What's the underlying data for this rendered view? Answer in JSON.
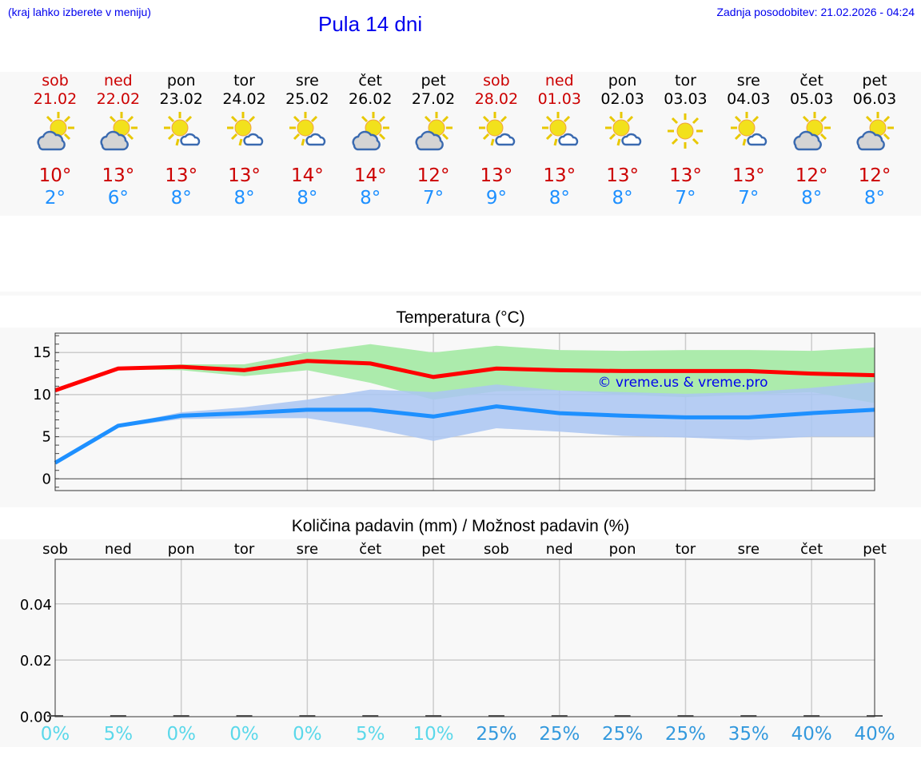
{
  "header": {
    "hint": "(kraj lahko izberete v meniju)",
    "title": "Pula 14 dni",
    "updated": "Zadnja posodobitev: 21.02.2026 - 04:24"
  },
  "days": [
    {
      "name": "sob",
      "date": "21.02",
      "weekend": true,
      "icon": "sun-cloud-icon",
      "max": "10°",
      "min": "2°"
    },
    {
      "name": "ned",
      "date": "22.02",
      "weekend": true,
      "icon": "sun-cloud-icon",
      "max": "13°",
      "min": "6°"
    },
    {
      "name": "pon",
      "date": "23.02",
      "weekend": false,
      "icon": "sun-small-cloud-icon",
      "max": "13°",
      "min": "8°"
    },
    {
      "name": "tor",
      "date": "24.02",
      "weekend": false,
      "icon": "sun-small-cloud-icon",
      "max": "13°",
      "min": "8°"
    },
    {
      "name": "sre",
      "date": "25.02",
      "weekend": false,
      "icon": "sun-small-cloud-icon",
      "max": "14°",
      "min": "8°"
    },
    {
      "name": "čet",
      "date": "26.02",
      "weekend": false,
      "icon": "sun-cloud-icon",
      "max": "14°",
      "min": "8°"
    },
    {
      "name": "pet",
      "date": "27.02",
      "weekend": false,
      "icon": "sun-cloud-icon",
      "max": "12°",
      "min": "7°"
    },
    {
      "name": "sob",
      "date": "28.02",
      "weekend": true,
      "icon": "sun-small-cloud-icon",
      "max": "13°",
      "min": "9°"
    },
    {
      "name": "ned",
      "date": "01.03",
      "weekend": true,
      "icon": "sun-small-cloud-icon",
      "max": "13°",
      "min": "8°"
    },
    {
      "name": "pon",
      "date": "02.03",
      "weekend": false,
      "icon": "sun-small-cloud-icon",
      "max": "13°",
      "min": "8°"
    },
    {
      "name": "tor",
      "date": "03.03",
      "weekend": false,
      "icon": "sun-icon",
      "max": "13°",
      "min": "7°"
    },
    {
      "name": "sre",
      "date": "04.03",
      "weekend": false,
      "icon": "sun-small-cloud-icon",
      "max": "13°",
      "min": "7°"
    },
    {
      "name": "čet",
      "date": "05.03",
      "weekend": false,
      "icon": "sun-cloud-icon",
      "max": "12°",
      "min": "8°"
    },
    {
      "name": "pet",
      "date": "06.03",
      "weekend": false,
      "icon": "sun-cloud-icon",
      "max": "12°",
      "min": "8°"
    }
  ],
  "colors": {
    "max": "#ff0000",
    "min": "#1e90ff",
    "max_band": "#acebac",
    "min_band": "#aac6f2",
    "pct_low": "#5bd8ea",
    "pct_high": "#3399dd"
  },
  "chart_data": [
    {
      "type": "line",
      "title": "Temperatura (°C)",
      "ylim": [
        -1.4,
        17.3
      ],
      "yticks": [
        "0",
        "5",
        "10",
        "15"
      ],
      "watermark": "© vreme.us & vreme.pro",
      "series": [
        {
          "name": "max",
          "values": [
            10.5,
            13.1,
            13.3,
            12.9,
            14.0,
            13.7,
            12.1,
            13.1,
            12.9,
            12.8,
            12.8,
            12.8,
            12.5,
            12.3
          ],
          "band_hi": [
            10.7,
            13.2,
            13.6,
            13.6,
            15.0,
            16.0,
            15.0,
            15.8,
            15.3,
            15.2,
            15.3,
            15.3,
            15.2,
            15.6
          ],
          "band_lo": [
            10.3,
            13.0,
            12.9,
            12.2,
            12.9,
            11.4,
            9.4,
            10.4,
            10.5,
            10.0,
            9.7,
            10.0,
            10.3,
            9.0
          ]
        },
        {
          "name": "min",
          "values": [
            1.9,
            6.3,
            7.5,
            7.8,
            8.2,
            8.2,
            7.4,
            8.6,
            7.8,
            7.5,
            7.3,
            7.3,
            7.8,
            8.2
          ],
          "band_hi": [
            2.0,
            6.4,
            7.9,
            8.5,
            9.4,
            10.6,
            10.3,
            11.2,
            10.5,
            10.3,
            10.1,
            10.3,
            10.8,
            11.5
          ],
          "band_lo": [
            1.7,
            6.1,
            7.1,
            7.2,
            7.2,
            6.0,
            4.5,
            6.0,
            5.6,
            5.1,
            4.9,
            4.6,
            5.0,
            5.0
          ]
        }
      ]
    },
    {
      "type": "bar",
      "title": "Količina padavin (mm) / Možnost padavin (%)",
      "ylim": [
        -0.001,
        0.055
      ],
      "yticks": [
        "0.00",
        "0.02",
        "0.04"
      ],
      "categories": [
        "sob",
        "ned",
        "pon",
        "tor",
        "sre",
        "čet",
        "pet",
        "sob",
        "ned",
        "pon",
        "tor",
        "sre",
        "čet",
        "pet"
      ],
      "values": [
        0,
        0,
        0,
        0,
        0,
        0,
        0,
        0,
        0,
        0,
        0,
        0,
        0,
        0
      ],
      "probability": [
        "0%",
        "5%",
        "0%",
        "0%",
        "0%",
        "5%",
        "10%",
        "25%",
        "25%",
        "25%",
        "25%",
        "35%",
        "40%",
        "40%"
      ]
    }
  ]
}
